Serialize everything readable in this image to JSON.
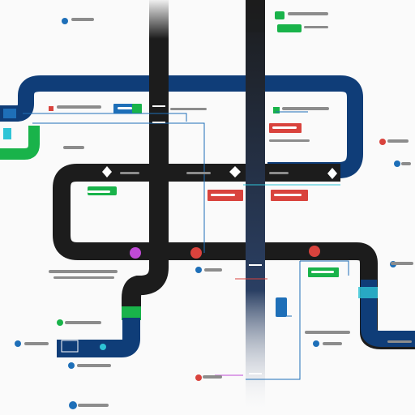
{
  "colors": {
    "track_navy": "#0f3d78",
    "track_black": "#1c1c1c",
    "track_green": "#19b34a",
    "accent_red": "#d9433d",
    "accent_blue": "#1e6fb8",
    "accent_purple": "#c04ad6",
    "accent_cyan": "#2ec4d6",
    "label_gray": "#8c8c8c",
    "background": "#fafafa"
  },
  "icons": {
    "station_dot": "filled-circle-icon",
    "interchange": "diamond-icon",
    "label_chip": "rounded-rect-icon",
    "train_car": "train-icon"
  }
}
